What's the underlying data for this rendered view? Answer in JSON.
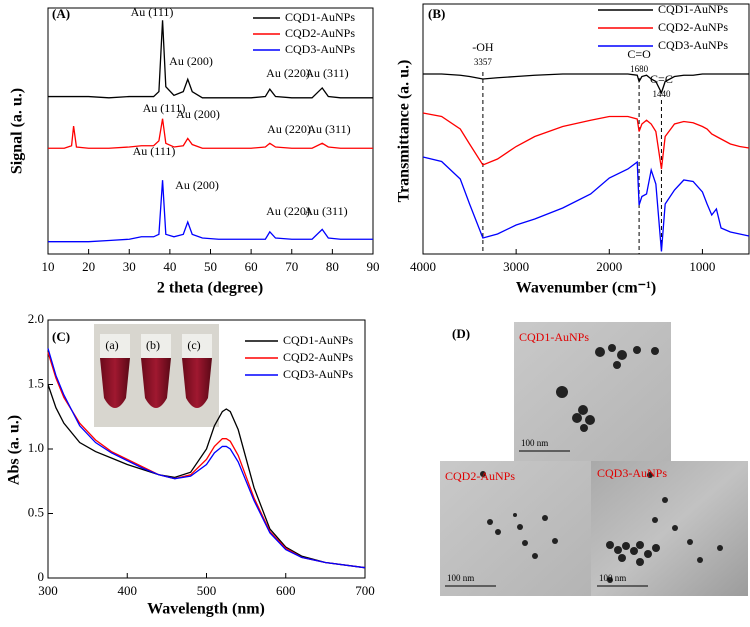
{
  "chart_data": [
    {
      "type": "line",
      "panel_label": "(A)",
      "x_label": "2 theta (degree)",
      "y_label": "Signal (a. u.)",
      "xlim": [
        10,
        90
      ],
      "xticks": [
        10,
        20,
        30,
        40,
        50,
        60,
        70,
        80,
        90
      ],
      "ylim": [
        0,
        100
      ],
      "legend": "upper right",
      "x": [
        10,
        14,
        15.8,
        16.3,
        17,
        20,
        25,
        30,
        33,
        36,
        37.3,
        38.2,
        39,
        41,
        43.3,
        44.4,
        45.5,
        48,
        52,
        56,
        60,
        63.5,
        64.6,
        66,
        70,
        75,
        77.5,
        79,
        82,
        86,
        90
      ],
      "series": [
        {
          "name": "CQD1-AuNPs",
          "color": "#000000",
          "values": [
            64,
            64,
            64,
            64,
            64,
            64,
            63.5,
            64,
            64,
            64,
            66,
            95,
            68,
            64.5,
            66,
            71,
            66,
            63.5,
            63.5,
            63.5,
            63.5,
            64,
            67,
            64,
            63.5,
            63.5,
            67.5,
            64,
            63.5,
            63.5,
            63.5
          ]
        },
        {
          "name": "CQD2-AuNPs",
          "color": "#ff0000",
          "values": [
            43,
            43,
            44,
            52,
            43.5,
            43,
            43,
            43.5,
            44,
            44,
            46,
            55,
            45,
            43.5,
            44,
            47,
            44.5,
            43,
            43,
            43,
            43,
            43.5,
            45,
            43.5,
            43,
            43,
            45,
            43.5,
            43,
            43,
            43
          ]
        },
        {
          "name": "CQD3-AuNPs",
          "color": "#0000ff",
          "values": [
            5,
            5,
            5,
            5,
            5,
            5,
            5.5,
            6,
            7,
            7,
            8,
            30,
            8,
            7,
            8,
            13,
            8,
            6.5,
            6,
            6,
            6,
            6,
            9,
            6.5,
            6,
            6,
            10,
            6.5,
            6,
            6,
            6
          ]
        }
      ],
      "annotations": [
        "Au (111)",
        "Au (200)",
        "Au (220)",
        "Au (311)",
        "Au (111)",
        "Au (200)",
        "Au (220)",
        "Au (311)",
        "Au (111)",
        "Au (200)",
        "Au (220)",
        "Au (311)"
      ]
    },
    {
      "type": "line",
      "panel_label": "(B)",
      "x_label": "Wavenumber (cm⁻¹)",
      "y_label": "Transmittance (a. u.)",
      "xlim": [
        4000,
        500
      ],
      "xticks": [
        4000,
        3000,
        2000,
        1000
      ],
      "ylim": [
        0,
        100
      ],
      "legend": "upper right",
      "x": [
        4000,
        3800,
        3600,
        3500,
        3357,
        3200,
        3000,
        2800,
        2500,
        2200,
        2000,
        1800,
        1700,
        1680,
        1650,
        1600,
        1550,
        1500,
        1440,
        1400,
        1300,
        1200,
        1100,
        1000,
        950,
        900,
        850,
        800,
        700,
        600,
        500
      ],
      "series": [
        {
          "name": "CQD1-AuNPs",
          "color": "#000000",
          "values": [
            72,
            72,
            71.5,
            71,
            70,
            70.5,
            71,
            71.5,
            72,
            72,
            72,
            72,
            71.5,
            69,
            71,
            71.5,
            70,
            69,
            64.5,
            69,
            71,
            71.5,
            71.5,
            72,
            72,
            72,
            72,
            72,
            72,
            72,
            72
          ]
        },
        {
          "name": "CQD2-AuNPs",
          "color": "#ff0000",
          "values": [
            56.4,
            55,
            50,
            44,
            35.6,
            38,
            43,
            47,
            51,
            53.5,
            55,
            55,
            54,
            49,
            52,
            53.5,
            52,
            49,
            34,
            47,
            52,
            53,
            52.5,
            51,
            50,
            48,
            47,
            46,
            44,
            43,
            42.4
          ]
        },
        {
          "name": "CQD3-AuNPs",
          "color": "#0000ff",
          "values": [
            38.8,
            37,
            30,
            20,
            6.4,
            8,
            11.6,
            14,
            18.4,
            24,
            30.4,
            34,
            36.8,
            19.6,
            23,
            24,
            33.6,
            28,
            1,
            20,
            25.6,
            29.6,
            29,
            24.8,
            20,
            15.6,
            18,
            10.4,
            8.8,
            8,
            7.2
          ]
        }
      ],
      "reference_lines": [
        3357,
        1680,
        1440
      ],
      "reference_labels": [
        "-OH",
        "C=O",
        "C=C"
      ]
    },
    {
      "type": "line",
      "panel_label": "(C)",
      "x_label": "Wavelength (nm)",
      "y_label": "Abs (a. u.)",
      "xlim": [
        300,
        700
      ],
      "xticks": [
        300,
        400,
        500,
        600,
        700
      ],
      "ylim": [
        0,
        2
      ],
      "yticks": [
        0,
        0.5,
        {
          "value": 1,
          "label": "1.0"
        },
        1.5,
        {
          "value": 2,
          "label": "2.0"
        }
      ],
      "legend": "upper right",
      "x": [
        300,
        310,
        320,
        340,
        360,
        380,
        400,
        420,
        440,
        460,
        480,
        500,
        510,
        520,
        525,
        530,
        540,
        560,
        580,
        600,
        620,
        650,
        700
      ],
      "series": [
        {
          "name": "CQD1-AuNPs",
          "color": "#000000",
          "values": [
            1.5,
            1.32,
            1.2,
            1.05,
            0.98,
            0.93,
            0.88,
            0.84,
            0.8,
            0.78,
            0.82,
            1.0,
            1.18,
            1.29,
            1.31,
            1.29,
            1.15,
            0.7,
            0.38,
            0.24,
            0.17,
            0.12,
            0.08
          ]
        },
        {
          "name": "CQD2-AuNPs",
          "color": "#ff0000",
          "values": [
            1.75,
            1.55,
            1.4,
            1.2,
            1.07,
            0.98,
            0.92,
            0.86,
            0.8,
            0.77,
            0.8,
            0.92,
            1.02,
            1.08,
            1.08,
            1.06,
            0.95,
            0.62,
            0.36,
            0.23,
            0.16,
            0.12,
            0.08
          ]
        },
        {
          "name": "CQD3-AuNPs",
          "color": "#0000ff",
          "values": [
            1.78,
            1.57,
            1.42,
            1.18,
            1.05,
            0.97,
            0.91,
            0.85,
            0.8,
            0.77,
            0.79,
            0.88,
            0.97,
            1.02,
            1.02,
            1.0,
            0.9,
            0.6,
            0.35,
            0.22,
            0.16,
            0.12,
            0.08
          ]
        }
      ],
      "inset_labels": [
        "(a)",
        "(b)",
        "(c)"
      ]
    }
  ],
  "tem_panel": {
    "panel_label": "(D)",
    "images": [
      {
        "label": "CQD1-AuNPs",
        "scale_bar": "100 nm"
      },
      {
        "label": "CQD2-AuNPs",
        "scale_bar": "100 nm"
      },
      {
        "label": "CQD3-AuNPs",
        "scale_bar": "100 nm"
      }
    ]
  }
}
